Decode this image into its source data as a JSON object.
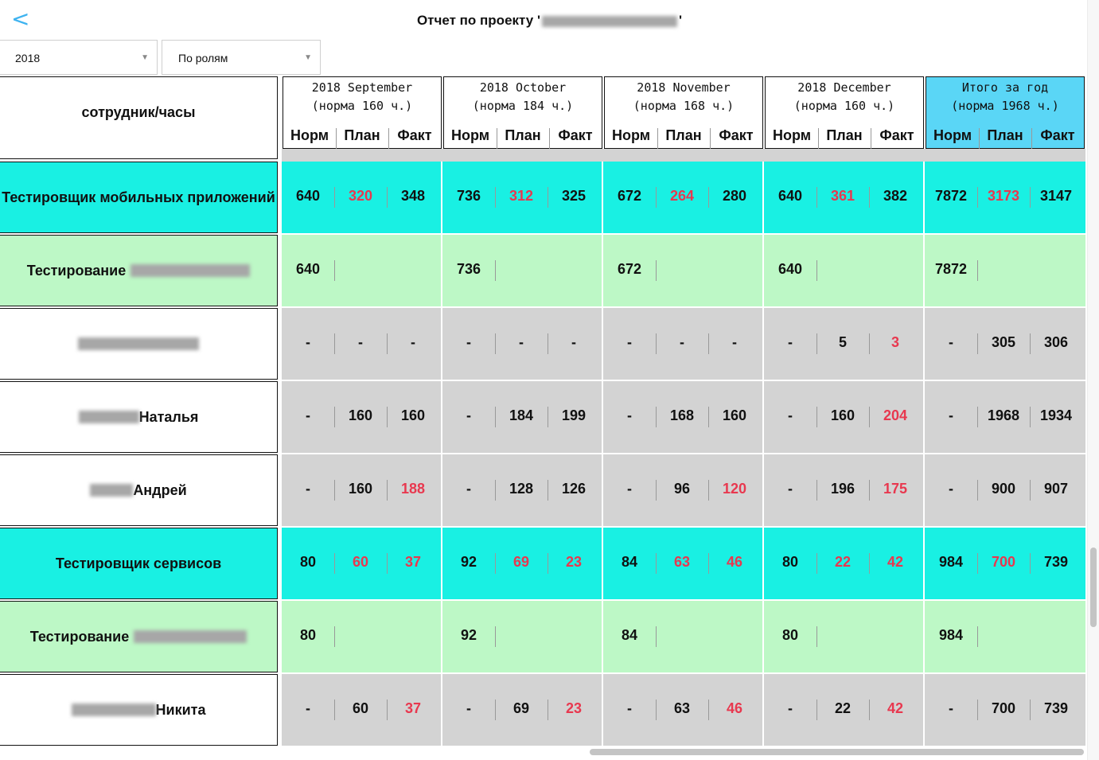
{
  "header": {
    "back_icon": "chevron-left-icon",
    "title_prefix": "Отчет по проекту '",
    "title_suffix": "'"
  },
  "filters": {
    "year": "2018",
    "mode": "По ролям"
  },
  "table": {
    "name_header": "сотрудник/часы",
    "col_labels": [
      "Норм",
      "План",
      "Факт"
    ],
    "months": [
      {
        "line1": "2018 September",
        "line2": "(норма 160 ч.)"
      },
      {
        "line1": "2018 October",
        "line2": "(норма 184 ч.)"
      },
      {
        "line1": "2018 November",
        "line2": "(норма 168 ч.)"
      },
      {
        "line1": "2018 December",
        "line2": "(норма 160 ч.)"
      },
      {
        "line1": "Итого за год",
        "line2": "(норма 1968 ч.)"
      }
    ],
    "rows": [
      {
        "type": "role",
        "name": "Тестировщик мобильных приложений",
        "blur_before": 0,
        "blur_after": 0,
        "values": [
          [
            "640",
            "320",
            "348"
          ],
          [
            "736",
            "312",
            "325"
          ],
          [
            "672",
            "264",
            "280"
          ],
          [
            "640",
            "361",
            "382"
          ],
          [
            "7872",
            "3173",
            "3147"
          ]
        ],
        "red": [
          [
            false,
            true,
            false
          ],
          [
            false,
            true,
            false
          ],
          [
            false,
            true,
            false
          ],
          [
            false,
            true,
            false
          ],
          [
            false,
            true,
            false
          ]
        ]
      },
      {
        "type": "project",
        "name": "Тестирование",
        "blur_before": 0,
        "blur_after": 150,
        "values": [
          [
            "640",
            "",
            ""
          ],
          [
            "736",
            "",
            ""
          ],
          [
            "672",
            "",
            ""
          ],
          [
            "640",
            "",
            ""
          ],
          [
            "7872",
            "",
            ""
          ]
        ],
        "red": [
          [
            false,
            false,
            false
          ],
          [
            false,
            false,
            false
          ],
          [
            false,
            false,
            false
          ],
          [
            false,
            false,
            false
          ],
          [
            false,
            false,
            false
          ]
        ]
      },
      {
        "type": "person",
        "name": "",
        "blur_before": 152,
        "blur_after": 0,
        "values": [
          [
            "-",
            "-",
            "-"
          ],
          [
            "-",
            "-",
            "-"
          ],
          [
            "-",
            "-",
            "-"
          ],
          [
            "-",
            "5",
            "3"
          ],
          [
            "-",
            "305",
            "306"
          ]
        ],
        "red": [
          [
            false,
            false,
            false
          ],
          [
            false,
            false,
            false
          ],
          [
            false,
            false,
            false
          ],
          [
            false,
            false,
            true
          ],
          [
            false,
            false,
            false
          ]
        ]
      },
      {
        "type": "person",
        "name": "Наталья",
        "blur_before": 76,
        "blur_after": 0,
        "values": [
          [
            "-",
            "160",
            "160"
          ],
          [
            "-",
            "184",
            "199"
          ],
          [
            "-",
            "168",
            "160"
          ],
          [
            "-",
            "160",
            "204"
          ],
          [
            "-",
            "1968",
            "1934"
          ]
        ],
        "red": [
          [
            false,
            false,
            false
          ],
          [
            false,
            false,
            false
          ],
          [
            false,
            false,
            false
          ],
          [
            false,
            false,
            true
          ],
          [
            false,
            false,
            false
          ]
        ]
      },
      {
        "type": "person",
        "name": "Андрей",
        "blur_before": 54,
        "blur_after": 0,
        "values": [
          [
            "-",
            "160",
            "188"
          ],
          [
            "-",
            "128",
            "126"
          ],
          [
            "-",
            "96",
            "120"
          ],
          [
            "-",
            "196",
            "175"
          ],
          [
            "-",
            "900",
            "907"
          ]
        ],
        "red": [
          [
            false,
            false,
            true
          ],
          [
            false,
            false,
            false
          ],
          [
            false,
            false,
            true
          ],
          [
            false,
            false,
            true
          ],
          [
            false,
            false,
            false
          ]
        ]
      },
      {
        "type": "role",
        "name": "Тестировщик сервисов",
        "blur_before": 0,
        "blur_after": 0,
        "values": [
          [
            "80",
            "60",
            "37"
          ],
          [
            "92",
            "69",
            "23"
          ],
          [
            "84",
            "63",
            "46"
          ],
          [
            "80",
            "22",
            "42"
          ],
          [
            "984",
            "700",
            "739"
          ]
        ],
        "red": [
          [
            false,
            true,
            true
          ],
          [
            false,
            true,
            true
          ],
          [
            false,
            true,
            true
          ],
          [
            false,
            true,
            true
          ],
          [
            false,
            true,
            false
          ]
        ]
      },
      {
        "type": "project",
        "name": "Тестирование",
        "blur_before": 0,
        "blur_after": 142,
        "values": [
          [
            "80",
            "",
            ""
          ],
          [
            "92",
            "",
            ""
          ],
          [
            "84",
            "",
            ""
          ],
          [
            "80",
            "",
            ""
          ],
          [
            "984",
            "",
            ""
          ]
        ],
        "red": [
          [
            false,
            false,
            false
          ],
          [
            false,
            false,
            false
          ],
          [
            false,
            false,
            false
          ],
          [
            false,
            false,
            false
          ],
          [
            false,
            false,
            false
          ]
        ]
      },
      {
        "type": "person",
        "name": "Никита",
        "blur_before": 106,
        "blur_after": 0,
        "values": [
          [
            "-",
            "60",
            "37"
          ],
          [
            "-",
            "69",
            "23"
          ],
          [
            "-",
            "63",
            "46"
          ],
          [
            "-",
            "22",
            "42"
          ],
          [
            "-",
            "700",
            "739"
          ]
        ],
        "red": [
          [
            false,
            false,
            true
          ],
          [
            false,
            false,
            true
          ],
          [
            false,
            false,
            true
          ],
          [
            false,
            false,
            true
          ],
          [
            false,
            false,
            false
          ]
        ]
      }
    ]
  },
  "colors": {
    "role_bg": "#19f0e3",
    "project_bg": "#bdf8c6",
    "person_bg": "#d3d3d3",
    "name_bg": "#ffffff",
    "total_header_bg": "#5ad6f6",
    "red_value": "#e8384f",
    "accent": "#3eb3f0"
  }
}
